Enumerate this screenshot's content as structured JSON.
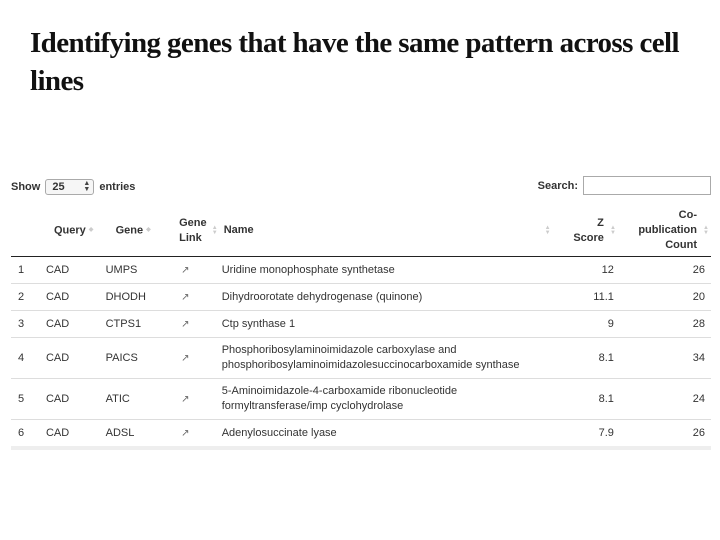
{
  "title": "Identifying genes that have the same pattern across cell lines",
  "controls": {
    "show_label": "Show",
    "entries_value": "25",
    "entries_label": "entries",
    "search_label": "Search:",
    "search_value": ""
  },
  "table": {
    "headers": {
      "index": "",
      "query": "Query",
      "gene": "Gene",
      "gene_link_line1": "Gene",
      "gene_link_line2": "Link",
      "name": "Name",
      "z_line1": "Z",
      "z_line2": "Score",
      "co_line1": "Co-",
      "co_line2": "publication",
      "co_line3": "Count"
    },
    "rows": [
      {
        "index": "1",
        "query": "CAD",
        "gene": "UMPS",
        "name": "Uridine monophosphate synthetase",
        "z": "12",
        "co": "26"
      },
      {
        "index": "2",
        "query": "CAD",
        "gene": "DHODH",
        "name": "Dihydroorotate dehydrogenase (quinone)",
        "z": "11.1",
        "co": "20"
      },
      {
        "index": "3",
        "query": "CAD",
        "gene": "CTPS1",
        "name": "Ctp synthase 1",
        "z": "9",
        "co": "28"
      },
      {
        "index": "4",
        "query": "CAD",
        "gene": "PAICS",
        "name": "Phosphoribosylaminoimidazole carboxylase and phosphoribosylaminoimidazolesuccinocarboxamide synthase",
        "z": "8.1",
        "co": "34"
      },
      {
        "index": "5",
        "query": "CAD",
        "gene": "ATIC",
        "name": "5-Aminoimidazole-4-carboxamide ribonucleotide formyltransferase/imp cyclohydrolase",
        "z": "8.1",
        "co": "24"
      },
      {
        "index": "6",
        "query": "CAD",
        "gene": "ADSL",
        "name": "Adenylosuccinate lyase",
        "z": "7.9",
        "co": "26"
      }
    ]
  },
  "icons": {
    "gene_link": "external-link-icon",
    "sort": "sort-both-icon",
    "select": "select-arrows-icon"
  }
}
